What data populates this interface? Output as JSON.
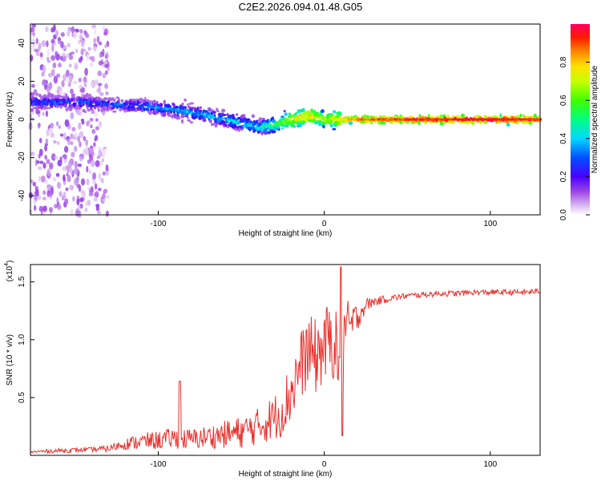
{
  "title": "C2E2.2026.094.01.48.G05",
  "chart_data": [
    {
      "type": "heatmap",
      "xlabel": "Height of straight line (km)",
      "ylabel": "Frequency (Hz)",
      "xlim": [
        -177,
        130
      ],
      "ylim": [
        -50,
        50
      ],
      "xticks": [
        -100,
        0,
        100
      ],
      "yticks": [
        -40,
        -20,
        0,
        20,
        40
      ],
      "xtick_labels": [
        "-100",
        "0",
        "100"
      ],
      "ytick_labels": [
        "-40",
        "-20",
        "0",
        "20",
        "40"
      ],
      "colorbar": {
        "label": "Normalized spectral amplitude",
        "range": [
          0.0,
          1.0
        ],
        "ticks": [
          0.0,
          0.2,
          0.4,
          0.6,
          0.8
        ],
        "tick_labels": [
          "0.0",
          "0.2",
          "0.4",
          "0.6",
          "0.8"
        ]
      },
      "ridge": {
        "x": [
          -170,
          -150,
          -130,
          -110,
          -90,
          -70,
          -50,
          -40,
          -30,
          -20,
          -10,
          0,
          10,
          20,
          50,
          100,
          130
        ],
        "freq": [
          9,
          9,
          8,
          7,
          5,
          2,
          -2,
          -4,
          -3,
          0,
          2,
          0,
          0,
          0,
          0,
          0,
          0
        ],
        "amplitude": [
          0.3,
          0.32,
          0.3,
          0.35,
          0.38,
          0.4,
          0.42,
          0.45,
          0.55,
          0.75,
          0.8,
          0.7,
          0.8,
          0.9,
          0.95,
          1.0,
          0.95
        ]
      }
    },
    {
      "type": "line",
      "xlabel": "Height of straight line (km)",
      "ylabel": "SNR (10 * v/v)",
      "y_multiplier_label": "(x10",
      "y_multiplier_exp": "4",
      "xlim": [
        -177,
        130
      ],
      "ylim": [
        0,
        1.65
      ],
      "xticks": [
        -100,
        0,
        100
      ],
      "yticks": [
        0.5,
        1.0,
        1.5
      ],
      "xtick_labels": [
        "-100",
        "0",
        "100"
      ],
      "ytick_labels": [
        "0.5",
        "1.0",
        "1.5"
      ],
      "series": [
        {
          "name": "SNR",
          "color": "#e8302b",
          "x": [
            -177,
            -160,
            -140,
            -130,
            -120,
            -110,
            -100,
            -90,
            -85,
            -80,
            -70,
            -60,
            -50,
            -40,
            -30,
            -25,
            -20,
            -15,
            -10,
            -5,
            0,
            5,
            10,
            12,
            15,
            20,
            25,
            30,
            40,
            50,
            60,
            70,
            80,
            90,
            100,
            110,
            120,
            130
          ],
          "y": [
            0.03,
            0.04,
            0.05,
            0.06,
            0.1,
            0.12,
            0.13,
            0.15,
            0.14,
            0.14,
            0.16,
            0.18,
            0.2,
            0.25,
            0.33,
            0.4,
            0.55,
            0.75,
            0.9,
            0.85,
            0.95,
            1.0,
            0.8,
            1.1,
            1.1,
            1.2,
            1.3,
            1.33,
            1.36,
            1.38,
            1.39,
            1.4,
            1.4,
            1.41,
            1.41,
            1.41,
            1.41,
            1.42
          ],
          "noise": [
            0.01,
            0.02,
            0.02,
            0.03,
            0.05,
            0.07,
            0.08,
            0.09,
            0.09,
            0.09,
            0.1,
            0.12,
            0.14,
            0.16,
            0.2,
            0.24,
            0.28,
            0.3,
            0.32,
            0.33,
            0.34,
            0.34,
            0.33,
            0.3,
            0.22,
            0.12,
            0.06,
            0.04,
            0.03,
            0.025,
            0.025,
            0.025,
            0.025,
            0.025,
            0.025,
            0.025,
            0.025,
            0.025
          ]
        }
      ]
    }
  ]
}
